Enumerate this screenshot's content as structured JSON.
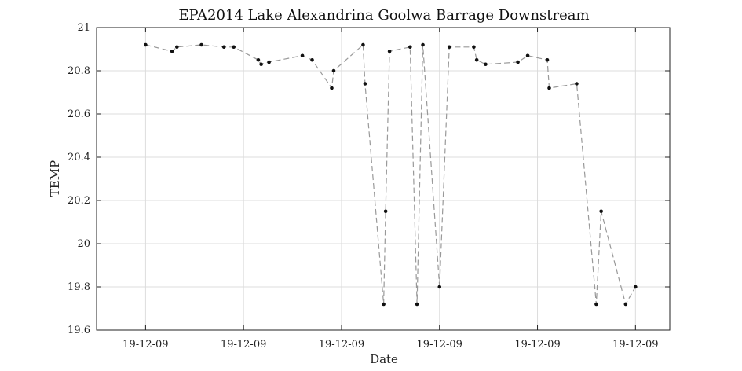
{
  "chart_data": {
    "type": "line",
    "title": "EPA2014 Lake Alexandrina Goolwa Barrage Downstream",
    "xlabel": "Date",
    "ylabel": "TEMP",
    "ylim": [
      19.6,
      21.0
    ],
    "y_ticks": [
      19.6,
      19.8,
      20.0,
      20.2,
      20.4,
      20.6,
      20.8,
      21.0
    ],
    "y_tick_labels": [
      "19.6",
      "19.8",
      "20",
      "20.2",
      "20.4",
      "20.6",
      "20.8",
      "21"
    ],
    "x_ticks": [
      0,
      1,
      2,
      3,
      4,
      5
    ],
    "x_tick_labels": [
      "19-12-09",
      "19-12-09",
      "19-12-09",
      "19-12-09",
      "19-12-09",
      "19-12-09"
    ],
    "xlim": [
      -0.5,
      5.35
    ],
    "grid": true,
    "legend": "none",
    "series": [
      {
        "x": [
          0,
          0.27,
          0.32,
          0.57,
          0.8,
          0.9,
          1.15,
          1.18,
          1.26,
          1.6,
          1.7,
          1.9,
          1.92,
          2.22,
          2.24,
          2.43,
          2.45,
          2.49,
          2.7,
          2.77,
          2.83,
          3.0,
          3.1,
          3.35,
          3.38,
          3.47,
          3.8,
          3.9,
          4.1,
          4.12,
          4.4,
          4.6,
          4.65,
          4.9,
          5.0
        ],
        "y": [
          20.92,
          20.89,
          20.91,
          20.92,
          20.91,
          20.91,
          20.85,
          20.83,
          20.84,
          20.87,
          20.85,
          20.72,
          20.8,
          20.92,
          20.74,
          19.72,
          20.15,
          20.89,
          20.91,
          19.72,
          20.92,
          19.8,
          20.91,
          20.91,
          20.85,
          20.83,
          20.84,
          20.87,
          20.85,
          20.72,
          20.74,
          19.72,
          20.15,
          19.72,
          19.8
        ]
      }
    ]
  },
  "colors": {
    "series": "#999999",
    "points": "#111111",
    "grid": "#dcdcdc"
  }
}
